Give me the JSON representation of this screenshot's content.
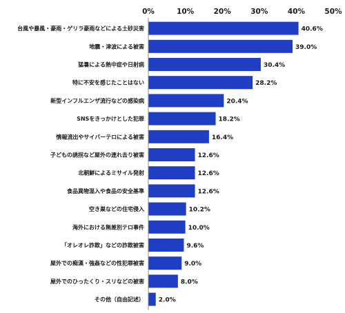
{
  "chart_data": {
    "type": "bar",
    "orientation": "horizontal",
    "categories": [
      "台風や暴風・豪雨・ゲリラ豪雨などによる土砂災害",
      "地震・津波による被害",
      "猛暑による熱中症や日射病",
      "特に不安を感じたことはない",
      "新型インフルエンザ流行などの感染病",
      "SNSをきっかけとした犯罪",
      "情報流出やサイバーテロによる被害",
      "子どもの誘拐など屋外の連れ去り被害",
      "北朝鮮によるミサイル発射",
      "食品異物混入や食品の安全基準",
      "空き巣などの住宅侵入",
      "海外における無差別テロ事件",
      "「オレオレ詐欺」などの詐欺被害",
      "屋外での痴漢・強姦などの性犯罪被害",
      "屋外でのひったくり・スリなどの被害",
      "その他（自由記述）"
    ],
    "values": [
      40.6,
      39.0,
      30.4,
      28.2,
      20.4,
      18.2,
      16.4,
      12.6,
      12.6,
      12.6,
      10.2,
      10.0,
      9.6,
      9.0,
      8.0,
      2.0
    ],
    "value_labels": [
      "40.6%",
      "39.0%",
      "30.4%",
      "28.2%",
      "20.4%",
      "18.2%",
      "16.4%",
      "12.6%",
      "12.6%",
      "12.6%",
      "10.2%",
      "10.0%",
      "9.6%",
      "9.0%",
      "8.0%",
      "2.0%"
    ],
    "xticks": [
      "0%",
      "10%",
      "20%",
      "30%",
      "40%",
      "50%"
    ],
    "xlim": [
      0,
      50
    ],
    "tick_position": "top",
    "grid": false,
    "title": "",
    "xlabel": "",
    "ylabel": "",
    "bar_color": "#1f3ec4"
  }
}
